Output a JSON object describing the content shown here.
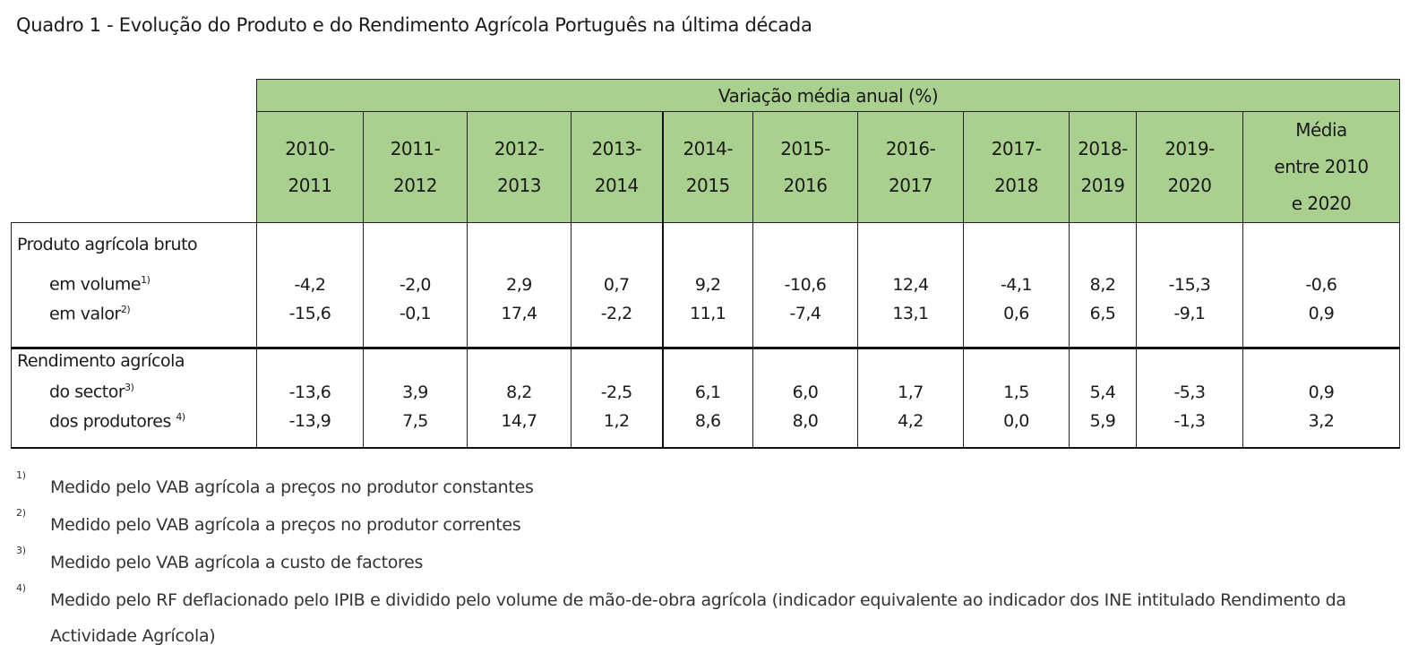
{
  "title": "Quadro 1 - Evolução do Produto e do Rendimento Agrícola Português na última década",
  "banner": "Variação média anual (%)",
  "columns": [
    [
      "2010-",
      "2011"
    ],
    [
      "2011-",
      "2012"
    ],
    [
      "2012-",
      "2013"
    ],
    [
      "2013-",
      "2014"
    ],
    [
      "2014-",
      "2015"
    ],
    [
      "2015-",
      "2016"
    ],
    [
      "2016-",
      "2017"
    ],
    [
      "2017-",
      "2018"
    ],
    [
      "2018-",
      "2019"
    ],
    [
      "2019-",
      "2020"
    ],
    [
      "Média",
      "entre 2010",
      "e 2020"
    ]
  ],
  "groups": [
    {
      "label": "Produto agrícola bruto",
      "rows": [
        {
          "label": "em volume",
          "note": "1)",
          "values": [
            "-4,2",
            "-2,0",
            "2,9",
            "0,7",
            "9,2",
            "-10,6",
            "12,4",
            "-4,1",
            "8,2",
            "-15,3",
            "-0,6"
          ]
        },
        {
          "label": "em valor",
          "note": "2)",
          "values": [
            "-15,6",
            "-0,1",
            "17,4",
            "-2,2",
            "11,1",
            "-7,4",
            "13,1",
            "0,6",
            "6,5",
            "-9,1",
            "0,9"
          ]
        }
      ]
    },
    {
      "label": "Rendimento agrícola",
      "rows": [
        {
          "label": "do sector",
          "note": "3)",
          "values": [
            "-13,6",
            "3,9",
            "8,2",
            "-2,5",
            "6,1",
            "6,0",
            "1,7",
            "1,5",
            "5,4",
            "-5,3",
            "0,9"
          ]
        },
        {
          "label": "dos produtores ",
          "note": "4)",
          "values": [
            "-13,9",
            "7,5",
            "14,7",
            "1,2",
            "8,6",
            "8,0",
            "4,2",
            "0,0",
            "5,9",
            "-1,3",
            "3,2"
          ]
        }
      ]
    }
  ],
  "footnotes": [
    {
      "mark": "1)",
      "text": "Medido pelo VAB agrícola a preços no produtor constantes"
    },
    {
      "mark": "2)",
      "text": "Medido pelo VAB agrícola a preços no produtor correntes"
    },
    {
      "mark": "3)",
      "text": "Medido pelo VAB agrícola a custo de factores"
    },
    {
      "mark": "4)",
      "text": "Medido pelo RF deflacionado pelo IPIB e dividido pelo volume de mão-de-obra agrícola (indicador equivalente ao indicador dos INE intitulado Rendimento da Actividade Agrícola)"
    }
  ]
}
